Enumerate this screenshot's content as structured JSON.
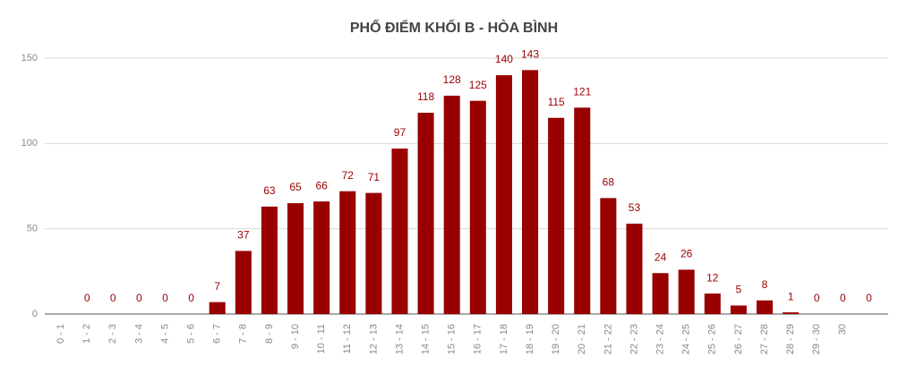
{
  "chart_data": {
    "type": "bar",
    "title": "PHỔ ĐIỂM KHỐI B - HÒA BÌNH",
    "categories": [
      "0 - 1",
      "1 - 2",
      "2 - 3",
      "3 - 4",
      "4 - 5",
      "5 - 6",
      "6 - 7",
      "7 - 8",
      "8 - 9",
      "9 - 10",
      "10 - 11",
      "11 - 12",
      "12 - 13",
      "13 - 14",
      "14 - 15",
      "15 - 16",
      "16 - 17",
      "17 - 18",
      "18 - 19",
      "19 - 20",
      "20 - 21",
      "21 - 22",
      "22 - 23",
      "23 - 24",
      "24 - 25",
      "25 - 26",
      "26 - 27",
      "27 - 28",
      "28 - 29",
      "29 - 30",
      "30",
      null
    ],
    "values": [
      null,
      0,
      0,
      0,
      0,
      0,
      7,
      37,
      63,
      65,
      66,
      72,
      71,
      97,
      118,
      128,
      125,
      140,
      143,
      115,
      121,
      68,
      53,
      24,
      26,
      12,
      5,
      8,
      1,
      0,
      0,
      0
    ],
    "color": "#990000",
    "ylim": [
      0,
      150
    ],
    "yticks": [
      0,
      50,
      100,
      150
    ],
    "grid": true
  }
}
